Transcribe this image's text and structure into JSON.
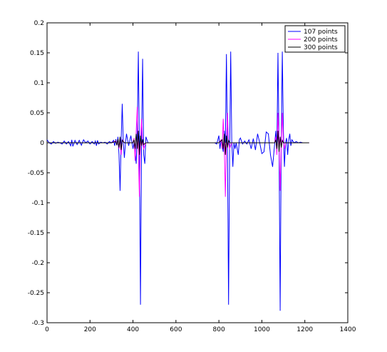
{
  "chart_data": {
    "type": "line",
    "title": "",
    "xlabel": "",
    "ylabel": "",
    "xlim": [
      0,
      1400
    ],
    "ylim": [
      -0.3,
      0.2
    ],
    "x_ticks": [
      0,
      200,
      400,
      600,
      800,
      1000,
      1200,
      1400
    ],
    "y_ticks": [
      0.2,
      0.15,
      0.1,
      0.05,
      0,
      -0.05,
      -0.1,
      -0.15,
      -0.2,
      -0.25,
      -0.3
    ],
    "x_tick_labels": [
      "0",
      "200",
      "400",
      "600",
      "800",
      "1000",
      "1200",
      "1400"
    ],
    "y_tick_labels": [
      "0.2",
      "0.15",
      "0.1",
      "0.05",
      "0",
      "-0.05",
      "-0.1",
      "-0.15",
      "-0.2",
      "-0.25",
      "-0.3"
    ],
    "grid": false,
    "legend_position": "top-right",
    "series": [
      {
        "name": "107 points",
        "color": "#0000ff",
        "points": [
          [
            0,
            0.005
          ],
          [
            10,
            0.0
          ],
          [
            20,
            -0.002
          ],
          [
            30,
            0.002
          ],
          [
            40,
            -0.001
          ],
          [
            50,
            0.001
          ],
          [
            60,
            0.0
          ],
          [
            70,
            -0.002
          ],
          [
            80,
            0.003
          ],
          [
            90,
            -0.002
          ],
          [
            100,
            0.002
          ],
          [
            110,
            -0.005
          ],
          [
            115,
            0.005
          ],
          [
            120,
            -0.006
          ],
          [
            130,
            0.004
          ],
          [
            140,
            -0.003
          ],
          [
            150,
            0.004
          ],
          [
            160,
            -0.004
          ],
          [
            170,
            0.005
          ],
          [
            180,
            0.0
          ],
          [
            190,
            0.003
          ],
          [
            200,
            -0.002
          ],
          [
            210,
            0.002
          ],
          [
            220,
            -0.002
          ],
          [
            225,
            0.003
          ],
          [
            230,
            -0.005
          ],
          [
            235,
            0.004
          ],
          [
            240,
            -0.002
          ],
          [
            250,
            0.001
          ],
          [
            260,
            0.0
          ],
          [
            270,
            0.001
          ],
          [
            280,
            -0.002
          ],
          [
            290,
            0.002
          ],
          [
            300,
            0.0
          ],
          [
            310,
            0.004
          ],
          [
            315,
            -0.005
          ],
          [
            320,
            0.006
          ],
          [
            325,
            -0.004
          ],
          [
            330,
            0.01
          ],
          [
            335,
            -0.02
          ],
          [
            340,
            -0.08
          ],
          [
            345,
            0.005
          ],
          [
            350,
            0.065
          ],
          [
            355,
            0.0
          ],
          [
            360,
            -0.025
          ],
          [
            365,
            0.0
          ],
          [
            370,
            0.015
          ],
          [
            380,
            -0.005
          ],
          [
            390,
            0.012
          ],
          [
            400,
            -0.01
          ],
          [
            405,
            0.0
          ],
          [
            410,
            -0.015
          ],
          [
            415,
            -0.035
          ],
          [
            420,
            0.02
          ],
          [
            425,
            0.152
          ],
          [
            430,
            -0.01
          ],
          [
            435,
            -0.27
          ],
          [
            440,
            0.0
          ],
          [
            445,
            0.14
          ],
          [
            450,
            -0.02
          ],
          [
            455,
            -0.035
          ],
          [
            460,
            0.01
          ],
          [
            470,
            0.0
          ],
          [
            480,
            0.0
          ],
          [
            600,
            0.0
          ],
          [
            780,
            0.0
          ],
          [
            790,
            -0.002
          ],
          [
            800,
            0.012
          ],
          [
            805,
            -0.01
          ],
          [
            810,
            0.005
          ],
          [
            815,
            -0.005
          ],
          [
            820,
            -0.015
          ],
          [
            825,
            0.02
          ],
          [
            830,
            0.0
          ],
          [
            835,
            0.148
          ],
          [
            840,
            -0.02
          ],
          [
            845,
            -0.27
          ],
          [
            850,
            -0.015
          ],
          [
            855,
            0.152
          ],
          [
            860,
            0.0
          ],
          [
            865,
            -0.04
          ],
          [
            870,
            0.0
          ],
          [
            875,
            -0.01
          ],
          [
            880,
            0.0
          ],
          [
            890,
            -0.02
          ],
          [
            895,
            0.005
          ],
          [
            900,
            0.008
          ],
          [
            910,
            -0.002
          ],
          [
            920,
            0.003
          ],
          [
            930,
            -0.002
          ],
          [
            940,
            0.005
          ],
          [
            950,
            -0.01
          ],
          [
            960,
            0.007
          ],
          [
            970,
            -0.012
          ],
          [
            980,
            0.015
          ],
          [
            990,
            0.0
          ],
          [
            1000,
            -0.018
          ],
          [
            1010,
            -0.015
          ],
          [
            1020,
            0.018
          ],
          [
            1030,
            0.015
          ],
          [
            1040,
            -0.02
          ],
          [
            1050,
            -0.04
          ],
          [
            1060,
            0.0
          ],
          [
            1065,
            0.02
          ],
          [
            1070,
            -0.01
          ],
          [
            1075,
            0.15
          ],
          [
            1080,
            0.0
          ],
          [
            1085,
            -0.28
          ],
          [
            1090,
            0.0
          ],
          [
            1095,
            0.152
          ],
          [
            1100,
            0.02
          ],
          [
            1105,
            -0.04
          ],
          [
            1110,
            0.0
          ],
          [
            1115,
            0.008
          ],
          [
            1120,
            -0.02
          ],
          [
            1125,
            0.005
          ],
          [
            1130,
            0.015
          ],
          [
            1135,
            -0.005
          ],
          [
            1140,
            0.005
          ],
          [
            1150,
            0.0
          ],
          [
            1160,
            0.002
          ],
          [
            1170,
            0.0
          ],
          [
            1180,
            0.001
          ],
          [
            1190,
            0.0
          ],
          [
            1200,
            0.0
          ],
          [
            1220,
            0.0
          ]
        ]
      },
      {
        "name": "200 points",
        "color": "#ff00ff",
        "points": [
          [
            0,
            0.0
          ],
          [
            200,
            0.0
          ],
          [
            300,
            0.0
          ],
          [
            320,
            0.003
          ],
          [
            325,
            -0.003
          ],
          [
            330,
            0.005
          ],
          [
            335,
            -0.01
          ],
          [
            340,
            0.008
          ],
          [
            345,
            -0.02
          ],
          [
            350,
            0.005
          ],
          [
            360,
            0.0
          ],
          [
            400,
            0.0
          ],
          [
            405,
            0.008
          ],
          [
            410,
            -0.03
          ],
          [
            415,
            0.02
          ],
          [
            420,
            0.06
          ],
          [
            425,
            -0.02
          ],
          [
            430,
            -0.09
          ],
          [
            435,
            0.0
          ],
          [
            440,
            0.04
          ],
          [
            445,
            0.0
          ],
          [
            450,
            -0.01
          ],
          [
            460,
            0.0
          ],
          [
            600,
            0.0
          ],
          [
            800,
            0.0
          ],
          [
            810,
            0.005
          ],
          [
            815,
            -0.01
          ],
          [
            820,
            0.04
          ],
          [
            825,
            -0.005
          ],
          [
            830,
            -0.09
          ],
          [
            835,
            0.0
          ],
          [
            840,
            0.05
          ],
          [
            845,
            0.0
          ],
          [
            850,
            -0.01
          ],
          [
            860,
            0.0
          ],
          [
            1000,
            0.0
          ],
          [
            1060,
            0.0
          ],
          [
            1065,
            0.01
          ],
          [
            1070,
            -0.02
          ],
          [
            1075,
            0.05
          ],
          [
            1080,
            0.0
          ],
          [
            1085,
            -0.08
          ],
          [
            1090,
            0.0
          ],
          [
            1095,
            0.05
          ],
          [
            1100,
            0.0
          ],
          [
            1105,
            -0.01
          ],
          [
            1110,
            0.0
          ],
          [
            1220,
            0.0
          ]
        ]
      },
      {
        "name": "300 points",
        "color": "#000000",
        "points": [
          [
            0,
            0.0
          ],
          [
            300,
            0.0
          ],
          [
            320,
            0.002
          ],
          [
            325,
            -0.004
          ],
          [
            330,
            0.006
          ],
          [
            335,
            -0.008
          ],
          [
            340,
            0.01
          ],
          [
            345,
            -0.012
          ],
          [
            350,
            0.004
          ],
          [
            360,
            0.0
          ],
          [
            400,
            0.0
          ],
          [
            405,
            0.005
          ],
          [
            410,
            -0.01
          ],
          [
            415,
            0.015
          ],
          [
            420,
            -0.01
          ],
          [
            425,
            0.02
          ],
          [
            430,
            -0.02
          ],
          [
            435,
            0.012
          ],
          [
            440,
            -0.005
          ],
          [
            445,
            0.006
          ],
          [
            450,
            -0.003
          ],
          [
            460,
            0.0
          ],
          [
            800,
            0.0
          ],
          [
            815,
            0.005
          ],
          [
            820,
            -0.01
          ],
          [
            825,
            0.015
          ],
          [
            830,
            -0.02
          ],
          [
            835,
            0.012
          ],
          [
            840,
            -0.008
          ],
          [
            845,
            0.004
          ],
          [
            850,
            0.0
          ],
          [
            1060,
            0.0
          ],
          [
            1065,
            0.005
          ],
          [
            1070,
            -0.01
          ],
          [
            1075,
            0.02
          ],
          [
            1080,
            -0.015
          ],
          [
            1085,
            0.01
          ],
          [
            1090,
            -0.008
          ],
          [
            1095,
            0.004
          ],
          [
            1100,
            0.0
          ],
          [
            1220,
            0.0
          ]
        ]
      }
    ]
  }
}
